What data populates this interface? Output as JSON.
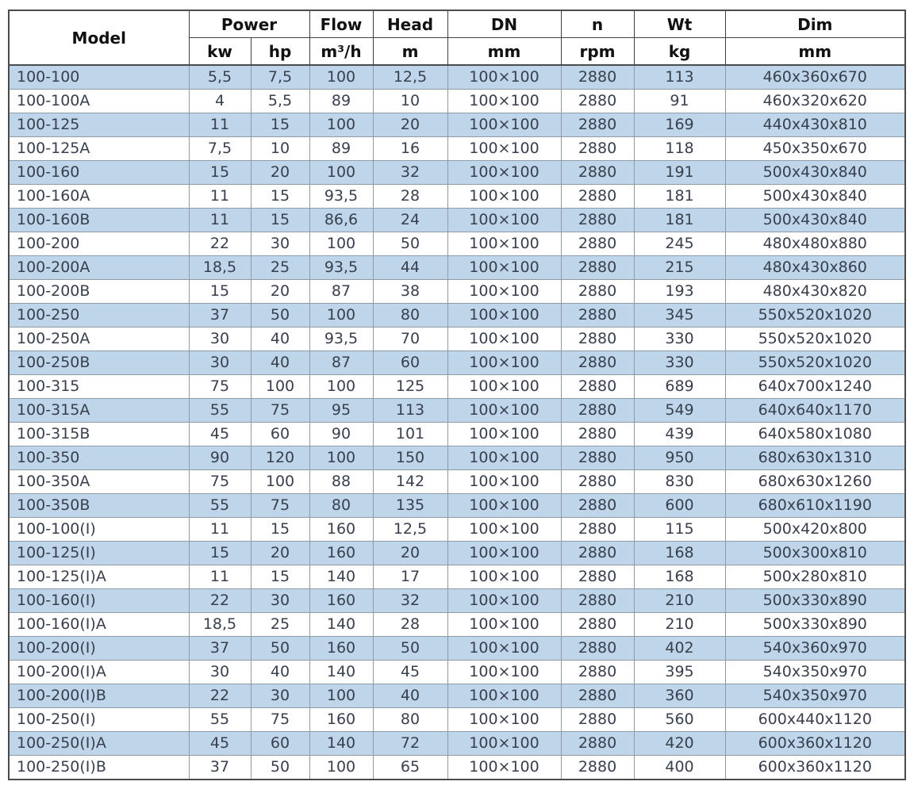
{
  "table": {
    "header": {
      "model": "Model",
      "power": "Power",
      "power_units": [
        "kw",
        "hp"
      ],
      "flow": "Flow",
      "flow_unit": "m³/h",
      "head": "Head",
      "head_unit": "m",
      "dn": "DN",
      "dn_unit": "mm",
      "n": "n",
      "n_unit": "rpm",
      "wt": "Wt",
      "wt_unit": "kg",
      "dim": "Dim",
      "dim_unit": "mm"
    },
    "rows": [
      [
        "100-100",
        "5,5",
        "7,5",
        "100",
        "12,5",
        "100×100",
        "2880",
        "113",
        "460x360x670"
      ],
      [
        "100-100A",
        "4",
        "5,5",
        "89",
        "10",
        "100×100",
        "2880",
        "91",
        "460x320x620"
      ],
      [
        "100-125",
        "11",
        "15",
        "100",
        "20",
        "100×100",
        "2880",
        "169",
        "440x430x810"
      ],
      [
        "100-125A",
        "7,5",
        "10",
        "89",
        "16",
        "100×100",
        "2880",
        "118",
        "450x350x670"
      ],
      [
        "100-160",
        "15",
        "20",
        "100",
        "32",
        "100×100",
        "2880",
        "191",
        "500x430x840"
      ],
      [
        "100-160A",
        "11",
        "15",
        "93,5",
        "28",
        "100×100",
        "2880",
        "181",
        "500x430x840"
      ],
      [
        "100-160B",
        "11",
        "15",
        "86,6",
        "24",
        "100×100",
        "2880",
        "181",
        "500x430x840"
      ],
      [
        "100-200",
        "22",
        "30",
        "100",
        "50",
        "100×100",
        "2880",
        "245",
        "480x480x880"
      ],
      [
        "100-200A",
        "18,5",
        "25",
        "93,5",
        "44",
        "100×100",
        "2880",
        "215",
        "480x430x860"
      ],
      [
        "100-200B",
        "15",
        "20",
        "87",
        "38",
        "100×100",
        "2880",
        "193",
        "480x430x820"
      ],
      [
        "100-250",
        "37",
        "50",
        "100",
        "80",
        "100×100",
        "2880",
        "345",
        "550x520x1020"
      ],
      [
        "100-250A",
        "30",
        "40",
        "93,5",
        "70",
        "100×100",
        "2880",
        "330",
        "550x520x1020"
      ],
      [
        "100-250B",
        "30",
        "40",
        "87",
        "60",
        "100×100",
        "2880",
        "330",
        "550x520x1020"
      ],
      [
        "100-315",
        "75",
        "100",
        "100",
        "125",
        "100×100",
        "2880",
        "689",
        "640x700x1240"
      ],
      [
        "100-315A",
        "55",
        "75",
        "95",
        "113",
        "100×100",
        "2880",
        "549",
        "640x640x1170"
      ],
      [
        "100-315B",
        "45",
        "60",
        "90",
        "101",
        "100×100",
        "2880",
        "439",
        "640x580x1080"
      ],
      [
        "100-350",
        "90",
        "120",
        "100",
        "150",
        "100×100",
        "2880",
        "950",
        "680x630x1310"
      ],
      [
        "100-350A",
        "75",
        "100",
        "88",
        "142",
        "100×100",
        "2880",
        "830",
        "680x630x1260"
      ],
      [
        "100-350B",
        "55",
        "75",
        "80",
        "135",
        "100×100",
        "2880",
        "600",
        "680x610x1190"
      ],
      [
        "100-100(I)",
        "11",
        "15",
        "160",
        "12,5",
        "100×100",
        "2880",
        "115",
        "500x420x800"
      ],
      [
        "100-125(I)",
        "15",
        "20",
        "160",
        "20",
        "100×100",
        "2880",
        "168",
        "500x300x810"
      ],
      [
        "100-125(I)A",
        "11",
        "15",
        "140",
        "17",
        "100×100",
        "2880",
        "168",
        "500x280x810"
      ],
      [
        "100-160(I)",
        "22",
        "30",
        "160",
        "32",
        "100×100",
        "2880",
        "210",
        "500x330x890"
      ],
      [
        "100-160(I)A",
        "18,5",
        "25",
        "140",
        "28",
        "100×100",
        "2880",
        "210",
        "500x330x890"
      ],
      [
        "100-200(I)",
        "37",
        "50",
        "160",
        "50",
        "100×100",
        "2880",
        "402",
        "540x360x970"
      ],
      [
        "100-200(I)A",
        "30",
        "40",
        "140",
        "45",
        "100×100",
        "2880",
        "395",
        "540x350x970"
      ],
      [
        "100-200(I)B",
        "22",
        "30",
        "100",
        "40",
        "100×100",
        "2880",
        "360",
        "540x350x970"
      ],
      [
        "100-250(I)",
        "55",
        "75",
        "160",
        "80",
        "100×100",
        "2880",
        "560",
        "600x440x1120"
      ],
      [
        "100-250(I)A",
        "45",
        "60",
        "140",
        "72",
        "100×100",
        "2880",
        "420",
        "600x360x1120"
      ],
      [
        "100-250(I)B",
        "37",
        "50",
        "100",
        "65",
        "100×100",
        "2880",
        "400",
        "600x360x1120"
      ]
    ]
  },
  "colors": {
    "row_highlight": "#bed5ea",
    "row_plain": "#ffffff",
    "cell_text": "#39404d",
    "header_text": "#111111",
    "grid_line": "#8f9aa4"
  }
}
